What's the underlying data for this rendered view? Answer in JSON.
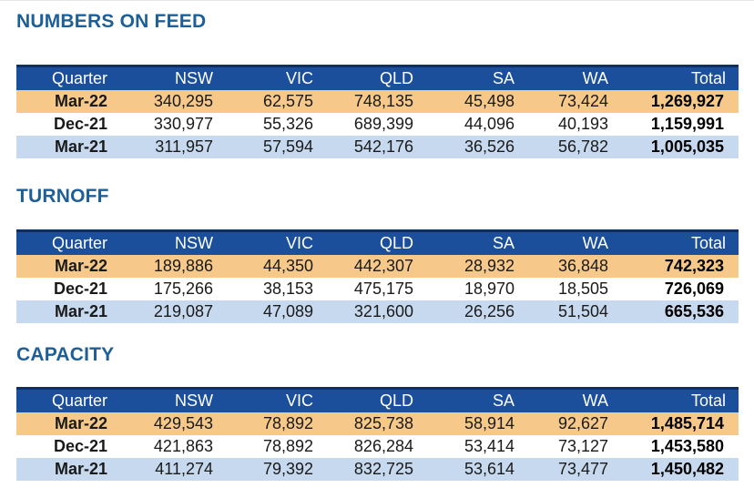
{
  "headers": [
    "Quarter",
    "NSW",
    "VIC",
    "QLD",
    "SA",
    "WA",
    "Total"
  ],
  "sections": [
    {
      "title": "NUMBERS ON FEED",
      "rows": [
        [
          "Mar-22",
          "340,295",
          "62,575",
          "748,135",
          "45,498",
          "73,424",
          "1,269,927"
        ],
        [
          "Dec-21",
          "330,977",
          "55,326",
          "689,399",
          "44,096",
          "40,193",
          "1,159,991"
        ],
        [
          "Mar-21",
          "311,957",
          "57,594",
          "542,176",
          "36,526",
          "56,782",
          "1,005,035"
        ]
      ]
    },
    {
      "title": "TURNOFF",
      "rows": [
        [
          "Mar-22",
          "189,886",
          "44,350",
          "442,307",
          "28,932",
          "36,848",
          "742,323"
        ],
        [
          "Dec-21",
          "175,266",
          "38,153",
          "475,175",
          "18,970",
          "18,505",
          "726,069"
        ],
        [
          "Mar-21",
          "219,087",
          "47,089",
          "321,600",
          "26,256",
          "51,504",
          "665,536"
        ]
      ]
    },
    {
      "title": "CAPACITY",
      "rows": [
        [
          "Mar-22",
          "429,543",
          "78,892",
          "825,738",
          "58,914",
          "92,627",
          "1,485,714"
        ],
        [
          "Dec-21",
          "421,863",
          "78,892",
          "826,284",
          "53,414",
          "73,127",
          "1,453,580"
        ],
        [
          "Mar-21",
          "411,274",
          "79,392",
          "832,725",
          "53,614",
          "73,477",
          "1,450,482"
        ]
      ]
    }
  ],
  "colors": {
    "title": "#1f5f97",
    "header_bg": "#1b4f9c",
    "row_current": "#f6c98a",
    "row_prior_year": "#c7d9ef"
  }
}
